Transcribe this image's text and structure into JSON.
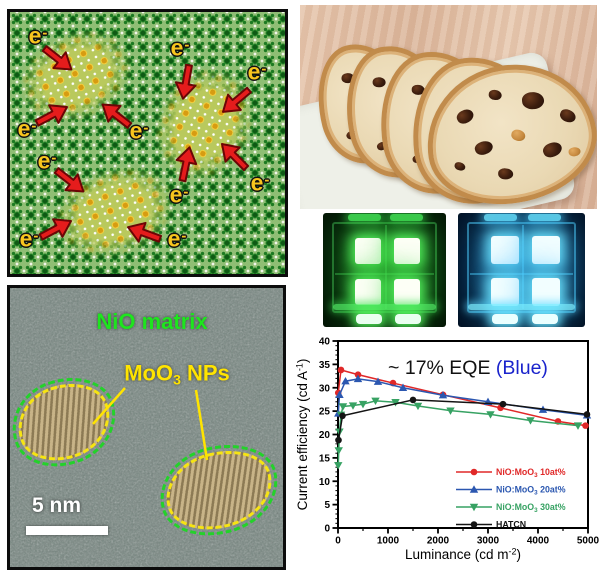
{
  "figure_labels": {
    "electron": {
      "base": "e",
      "sup": "-"
    },
    "tem": {
      "matrix_label": "NiO matrix",
      "np_prefix": "MoO",
      "np_sub": "3",
      "np_suffix": " NPs",
      "scale_text": "5 nm"
    }
  },
  "chart_data": {
    "type": "line",
    "annotation": {
      "black": "~ 17% EQE ",
      "blue": "(Blue)",
      "blue_color": "#1a23cc"
    },
    "xlabel": {
      "prefix": "Luminance (cd m",
      "sup": "-2",
      "suffix": ")"
    },
    "ylabel": {
      "prefix": "Current efficiency (cd A",
      "sup": "-1",
      "suffix": ")"
    },
    "xlim": [
      0,
      5000
    ],
    "ylim": [
      0,
      40
    ],
    "xticks": [
      0,
      1000,
      2000,
      3000,
      4000,
      5000
    ],
    "yticks": [
      0,
      5,
      10,
      15,
      20,
      25,
      30,
      35,
      40
    ],
    "x_minor_step": 500,
    "y_minor_step": 1,
    "grid": false,
    "legend_position": "lower right",
    "series": [
      {
        "name": {
          "prefix": "NiO:MoO",
          "sub": "3",
          "suffix": " 10at%"
        },
        "color": "#e02828",
        "marker": "circle",
        "points": [
          [
            5,
            28.9
          ],
          [
            60,
            33.8
          ],
          [
            400,
            32.8
          ],
          [
            1100,
            31.0
          ],
          [
            2100,
            28.5
          ],
          [
            3250,
            25.7
          ],
          [
            4400,
            22.8
          ],
          [
            4950,
            21.9
          ]
        ]
      },
      {
        "name": {
          "prefix": "NiO:MoO",
          "sub": "3",
          "suffix": " 20at%"
        },
        "color": "#2b57b0",
        "marker": "triangle-up",
        "points": [
          [
            5,
            24.5
          ],
          [
            30,
            28.5
          ],
          [
            150,
            31.4
          ],
          [
            400,
            31.9
          ],
          [
            800,
            31.3
          ],
          [
            1300,
            30.0
          ],
          [
            2100,
            28.4
          ],
          [
            3000,
            27.0
          ],
          [
            4100,
            25.3
          ],
          [
            4980,
            24.1
          ]
        ]
      },
      {
        "name": {
          "prefix": "NiO:MoO",
          "sub": "3",
          "suffix": " 30at%"
        },
        "color": "#37a263",
        "marker": "triangle-down",
        "points": [
          [
            5,
            13.4
          ],
          [
            15,
            16.6
          ],
          [
            30,
            20.6
          ],
          [
            60,
            24.2
          ],
          [
            100,
            26.0
          ],
          [
            300,
            26.2
          ],
          [
            500,
            26.5
          ],
          [
            750,
            27.2
          ],
          [
            1150,
            26.9
          ],
          [
            1600,
            26.1
          ],
          [
            2250,
            25.1
          ],
          [
            3050,
            24.3
          ],
          [
            3850,
            23.0
          ],
          [
            4800,
            21.9
          ]
        ]
      },
      {
        "name": {
          "prefix": "HATCN",
          "sub": "",
          "suffix": ""
        },
        "color": "#141414",
        "marker": "circle",
        "points": [
          [
            10,
            18.8
          ],
          [
            90,
            24.0
          ],
          [
            1500,
            27.4
          ],
          [
            3300,
            26.5
          ],
          [
            4980,
            24.3
          ]
        ]
      }
    ]
  }
}
